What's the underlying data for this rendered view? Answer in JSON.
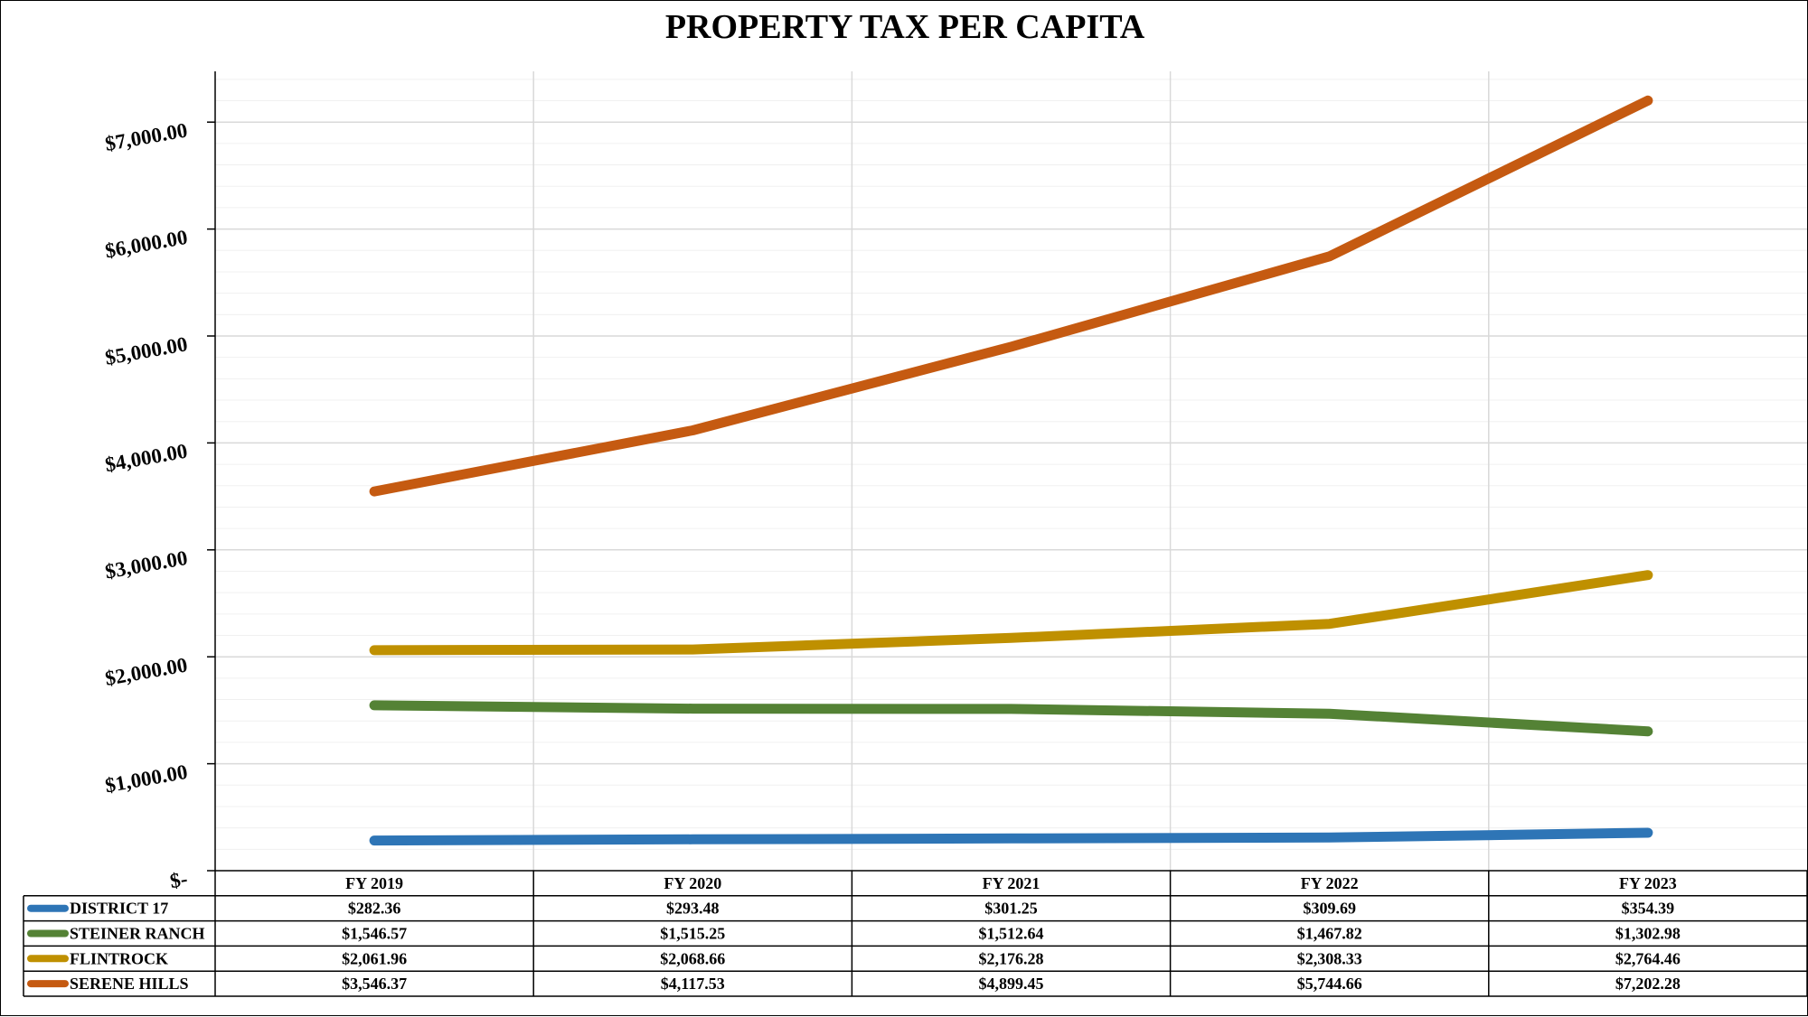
{
  "chart_data": {
    "type": "line",
    "title": "PROPERTY TAX PER CAPITA",
    "categories": [
      "FY 2019",
      "FY 2020",
      "FY 2021",
      "FY 2022",
      "FY 2023"
    ],
    "ylim": [
      0,
      7500
    ],
    "yticks": [
      0,
      1000,
      2000,
      3000,
      4000,
      5000,
      6000,
      7000
    ],
    "ytick_labels": [
      "$-",
      "$1,000.00",
      "$2,000.00",
      "$3,000.00",
      "$4,000.00",
      "$5,000.00",
      "$6,000.00",
      "$7,000.00"
    ],
    "grid": true,
    "legend": "data-table-below",
    "series": [
      {
        "name": "DISTRICT 17",
        "color": "#2e75b6",
        "values": [
          282.36,
          293.48,
          301.25,
          309.69,
          354.39
        ],
        "labels": [
          "$282.36",
          "$293.48",
          "$301.25",
          "$309.69",
          "$354.39"
        ]
      },
      {
        "name": "STEINER RANCH",
        "color": "#548235",
        "values": [
          1546.57,
          1515.25,
          1512.64,
          1467.82,
          1302.98
        ],
        "labels": [
          "$1,546.57",
          "$1,515.25",
          "$1,512.64",
          "$1,467.82",
          "$1,302.98"
        ]
      },
      {
        "name": "FLINTROCK",
        "color": "#bf9000",
        "values": [
          2061.96,
          2068.66,
          2176.28,
          2308.33,
          2764.46
        ],
        "labels": [
          "$2,061.96",
          "$2,068.66",
          "$2,176.28",
          "$2,308.33",
          "$2,764.46"
        ]
      },
      {
        "name": "SERENE HILLS",
        "color": "#c55a11",
        "values": [
          3546.37,
          4117.53,
          4899.45,
          5744.66,
          7202.28
        ],
        "labels": [
          "$3,546.37",
          "$4,117.53",
          "$4,899.45",
          "$5,744.66",
          "$7,202.28"
        ]
      }
    ]
  }
}
